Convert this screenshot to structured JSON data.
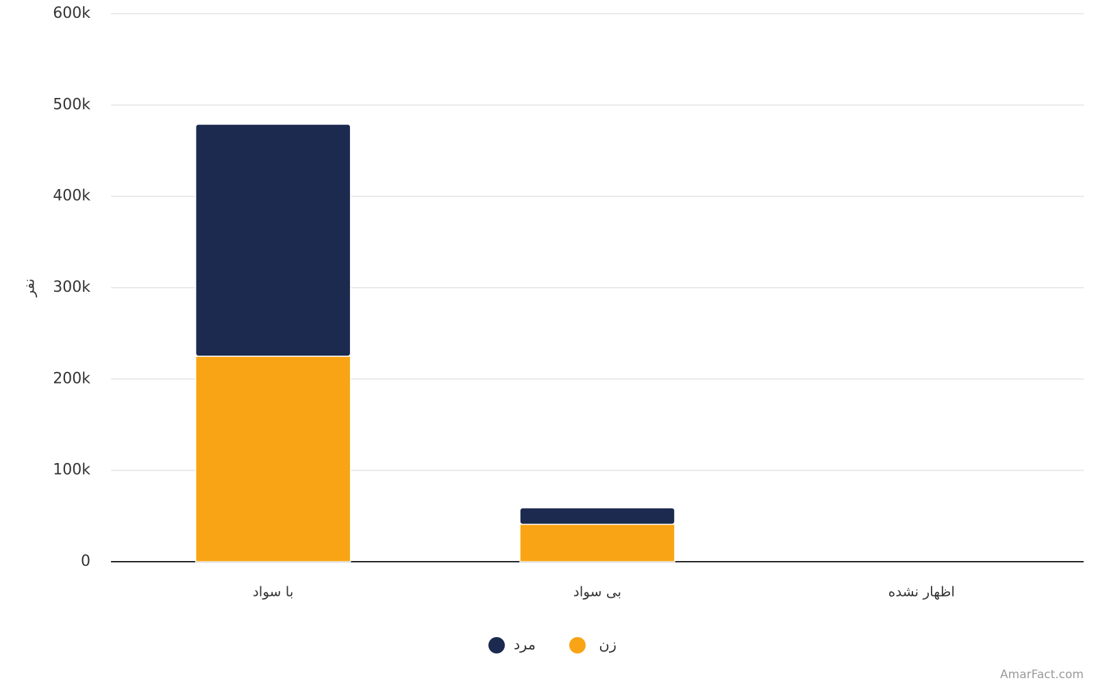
{
  "chart_data": {
    "type": "stacked_bar",
    "categories": [
      "با سواد",
      "بی سواد",
      "اظهار نشده"
    ],
    "series": [
      {
        "name": "زن",
        "color": "#f9a414",
        "values": [
          225000,
          41000,
          0
        ]
      },
      {
        "name": "مرد",
        "color": "#1b2a4e",
        "values": [
          254000,
          18000,
          0
        ]
      }
    ],
    "y_label": "نفر",
    "ylim": [
      0,
      600000
    ],
    "yticks": [
      0,
      {
        "value": 100000,
        "label": "100k"
      },
      {
        "value": 200000,
        "label": "200k"
      },
      {
        "value": 300000,
        "label": "300k"
      },
      {
        "value": 400000,
        "label": "400k"
      },
      {
        "value": 500000,
        "label": "500k"
      },
      {
        "value": 600000,
        "label": "600k"
      }
    ],
    "grid": true,
    "legend": "bottom",
    "source": "AmarFact.com"
  }
}
